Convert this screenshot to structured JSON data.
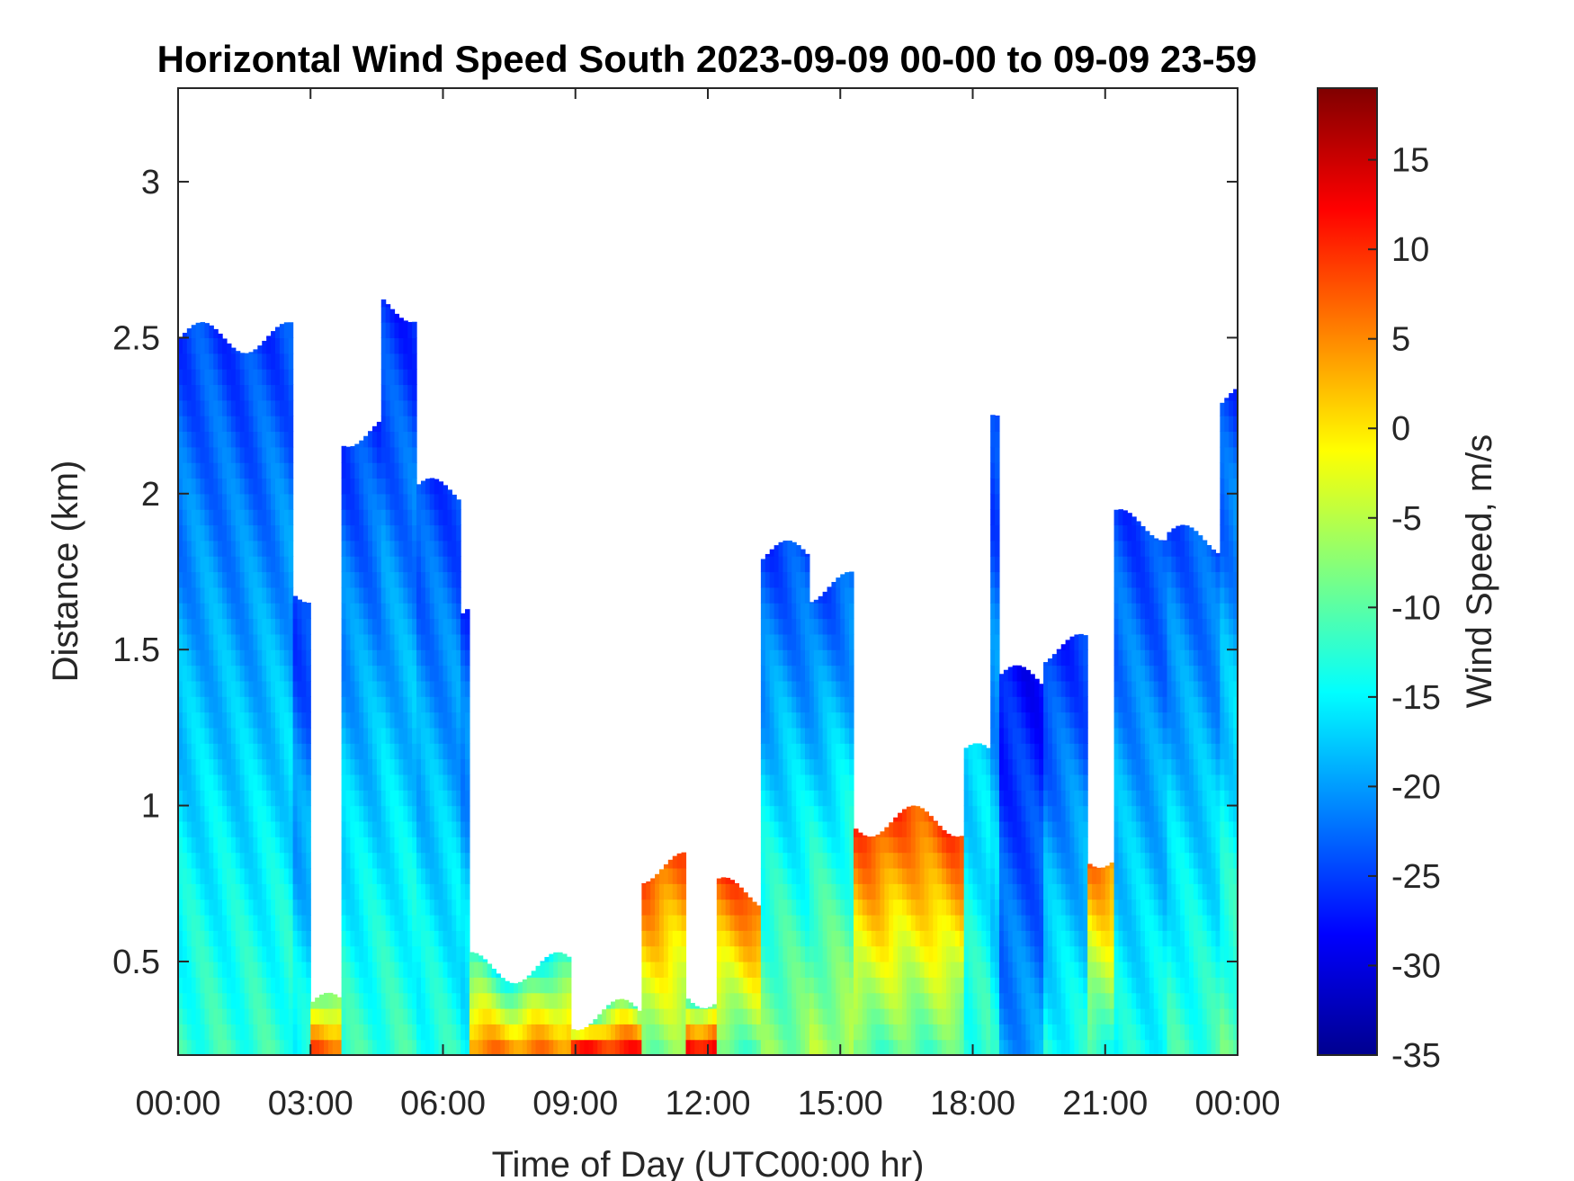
{
  "chart_data": {
    "type": "heatmap",
    "title": "Horizontal Wind Speed South 2023-09-09 00-00 to 09-09 23-59",
    "xlabel": "Time of Day (UTC00:00 hr)",
    "ylabel": "Distance (km)",
    "colorbar_label": "Wind Speed, m/s",
    "colormap": "jet",
    "xlim": [
      0,
      24
    ],
    "ylim": [
      0.2,
      3.3
    ],
    "clim": [
      -35,
      19
    ],
    "x_ticks": [
      0,
      3,
      6,
      9,
      12,
      15,
      18,
      21,
      24
    ],
    "x_tick_labels": [
      "00:00",
      "03:00",
      "06:00",
      "09:00",
      "12:00",
      "15:00",
      "18:00",
      "21:00",
      "00:00"
    ],
    "y_ticks": [
      0.5,
      1,
      1.5,
      2,
      2.5,
      3
    ],
    "y_tick_labels": [
      "0.5",
      "1",
      "1.5",
      "2",
      "2.5",
      "3"
    ],
    "colorbar_ticks": [
      -35,
      -30,
      -25,
      -20,
      -15,
      -10,
      -5,
      0,
      5,
      10,
      15
    ],
    "colorbar_tick_labels": [
      "-35",
      "-30",
      "-25",
      "-20",
      "-15",
      "-10",
      "-5",
      "0",
      "5",
      "10",
      "15"
    ],
    "grid": false,
    "data_coverage": [
      {
        "start": 0.0,
        "end": 2.6,
        "top": 2.5,
        "surface": -12,
        "top_value": -25
      },
      {
        "start": 2.6,
        "end": 3.0,
        "top": 1.7,
        "surface": -14,
        "top_value": -26
      },
      {
        "start": 3.0,
        "end": 3.7,
        "top": 0.35,
        "surface": 7,
        "top_value": -10
      },
      {
        "start": 3.7,
        "end": 4.6,
        "top": 2.2,
        "surface": -12,
        "top_value": -25
      },
      {
        "start": 4.6,
        "end": 5.4,
        "top": 2.6,
        "surface": -12,
        "top_value": -26
      },
      {
        "start": 5.4,
        "end": 6.4,
        "top": 2.0,
        "surface": -13,
        "top_value": -25
      },
      {
        "start": 6.4,
        "end": 6.6,
        "top": 1.65,
        "surface": -14,
        "top_value": -25
      },
      {
        "start": 6.6,
        "end": 8.9,
        "top": 0.48,
        "surface": 5,
        "top_value": -15
      },
      {
        "start": 8.9,
        "end": 10.5,
        "top": 0.33,
        "surface": 10,
        "top_value": -12
      },
      {
        "start": 10.5,
        "end": 11.5,
        "top": 0.8,
        "surface": -8,
        "top_value": 8
      },
      {
        "start": 11.5,
        "end": 12.2,
        "top": 0.4,
        "surface": 12,
        "top_value": -12
      },
      {
        "start": 12.2,
        "end": 13.2,
        "top": 0.72,
        "surface": -10,
        "top_value": 9
      },
      {
        "start": 13.2,
        "end": 14.3,
        "top": 1.8,
        "surface": -8,
        "top_value": -25
      },
      {
        "start": 14.3,
        "end": 15.3,
        "top": 1.7,
        "surface": -6,
        "top_value": -24
      },
      {
        "start": 15.3,
        "end": 17.8,
        "top": 0.95,
        "surface": -10,
        "top_value": 9
      },
      {
        "start": 17.8,
        "end": 18.4,
        "top": 1.15,
        "surface": -12,
        "top_value": -18
      },
      {
        "start": 18.4,
        "end": 18.6,
        "top": 2.3,
        "surface": -14,
        "top_value": -26
      },
      {
        "start": 18.6,
        "end": 19.6,
        "top": 1.4,
        "surface": -20,
        "top_value": -28
      },
      {
        "start": 19.6,
        "end": 20.6,
        "top": 1.5,
        "surface": -14,
        "top_value": -26
      },
      {
        "start": 20.6,
        "end": 21.2,
        "top": 0.85,
        "surface": -12,
        "top_value": 6
      },
      {
        "start": 21.2,
        "end": 22.4,
        "top": 1.9,
        "surface": -14,
        "top_value": -25
      },
      {
        "start": 22.4,
        "end": 23.6,
        "top": 1.85,
        "surface": -12,
        "top_value": -24
      },
      {
        "start": 23.6,
        "end": 24.0,
        "top": 2.3,
        "surface": -10,
        "top_value": -25
      }
    ]
  }
}
